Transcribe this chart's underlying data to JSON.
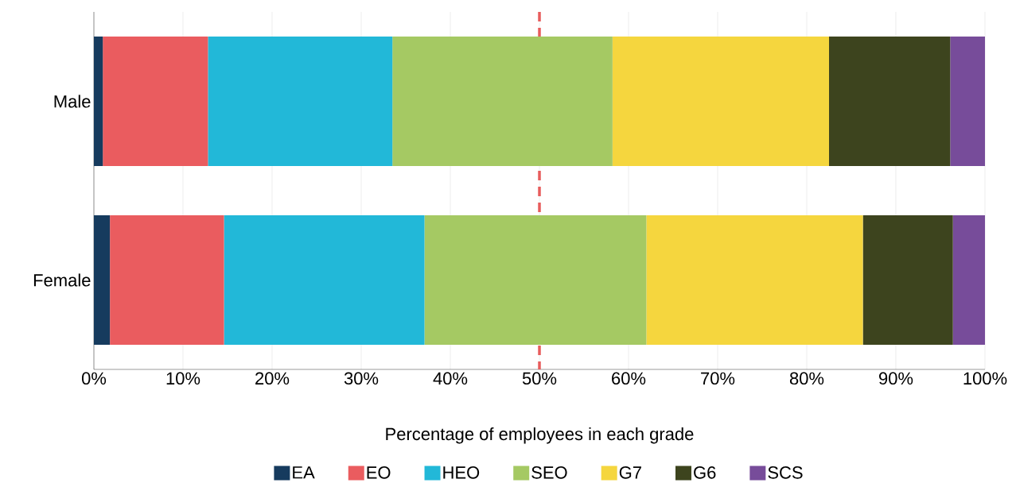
{
  "chart_data": {
    "type": "bar",
    "orientation": "horizontal",
    "stacked": true,
    "xlabel": "Percentage of employees in each grade",
    "categories": [
      "Male",
      "Female"
    ],
    "series": [
      {
        "name": "EA",
        "color": "#163b5e",
        "values": [
          1.0,
          1.8
        ]
      },
      {
        "name": "EO",
        "color": "#ea5c5f",
        "values": [
          11.8,
          12.8
        ]
      },
      {
        "name": "HEO",
        "color": "#22b8d8",
        "values": [
          20.7,
          22.5
        ]
      },
      {
        "name": "SEO",
        "color": "#a5c963",
        "values": [
          24.7,
          24.9
        ]
      },
      {
        "name": "G7",
        "color": "#f5d63e",
        "values": [
          24.3,
          24.3
        ]
      },
      {
        "name": "G6",
        "color": "#3d441e",
        "values": [
          13.6,
          10.1
        ]
      },
      {
        "name": "SCS",
        "color": "#774c9a",
        "values": [
          3.9,
          3.6
        ]
      }
    ],
    "xlim": [
      0,
      100
    ],
    "xticks": [
      {
        "value": 0,
        "label": "0%"
      },
      {
        "value": 10,
        "label": "10%"
      },
      {
        "value": 20,
        "label": "20%"
      },
      {
        "value": 30,
        "label": "30%"
      },
      {
        "value": 40,
        "label": "40%"
      },
      {
        "value": 50,
        "label": "50%"
      },
      {
        "value": 60,
        "label": "60%"
      },
      {
        "value": 70,
        "label": "70%"
      },
      {
        "value": 80,
        "label": "80%"
      },
      {
        "value": 90,
        "label": "90%"
      },
      {
        "value": 100,
        "label": "100%"
      }
    ],
    "ref_lines": [
      {
        "axis": "x",
        "value": 50,
        "color": "#e85c5c",
        "line_style": "dashed"
      }
    ],
    "grid": "x",
    "legend": "bottom"
  }
}
